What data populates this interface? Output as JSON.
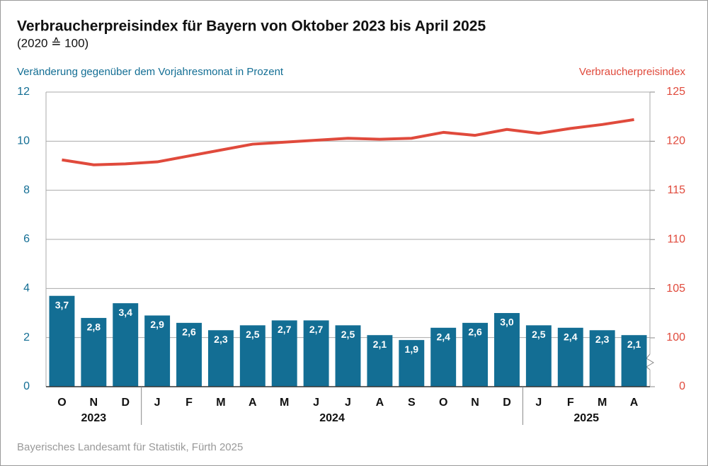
{
  "chart_data": {
    "type": "bar_line",
    "title": "Verbraucherpreisindex für Bayern von Oktober 2023 bis April 2025",
    "subtitle": "(2020 ≙ 100)",
    "source": "Bayerisches Landesamt für Statistik, Fürth 2025",
    "categories": [
      "O",
      "N",
      "D",
      "J",
      "F",
      "M",
      "A",
      "M",
      "J",
      "J",
      "A",
      "S",
      "O",
      "N",
      "D",
      "J",
      "F",
      "M",
      "A"
    ],
    "x_groups": [
      {
        "label": "2023",
        "size": 3
      },
      {
        "label": "2024",
        "size": 12
      },
      {
        "label": "2025",
        "size": 4
      }
    ],
    "series": [
      {
        "name": "Veränderung gegenüber dem Vorjahresmonat in Prozent",
        "type": "bar",
        "color": "#136e94",
        "values": [
          3.7,
          2.8,
          3.4,
          2.9,
          2.6,
          2.3,
          2.5,
          2.7,
          2.7,
          2.5,
          2.1,
          1.9,
          2.4,
          2.6,
          3.0,
          2.5,
          2.4,
          2.3,
          2.1
        ],
        "value_labels": [
          "3,7",
          "2,8",
          "3,4",
          "2,9",
          "2,6",
          "2,3",
          "2,5",
          "2,7",
          "2,7",
          "2,5",
          "2,1",
          "1,9",
          "2,4",
          "2,6",
          "3,0",
          "2,5",
          "2,4",
          "2,3",
          "2,1"
        ]
      },
      {
        "name": "Verbraucherpreisindex",
        "type": "line",
        "axis": "y2",
        "color": "#e04a3c",
        "values": [
          118.1,
          117.6,
          117.7,
          117.9,
          118.5,
          119.1,
          119.7,
          119.9,
          120.1,
          120.3,
          120.2,
          120.3,
          120.9,
          120.6,
          121.2,
          120.8,
          121.3,
          121.7,
          122.2
        ]
      }
    ],
    "ylim": [
      0,
      12
    ],
    "yticks": [
      0,
      2,
      4,
      6,
      8,
      10,
      12
    ],
    "y2lim": [
      0,
      125
    ],
    "y2ticks": [
      0,
      100,
      105,
      110,
      115,
      120,
      125
    ],
    "y2_axis_break": [
      0,
      100
    ],
    "grid": true
  }
}
